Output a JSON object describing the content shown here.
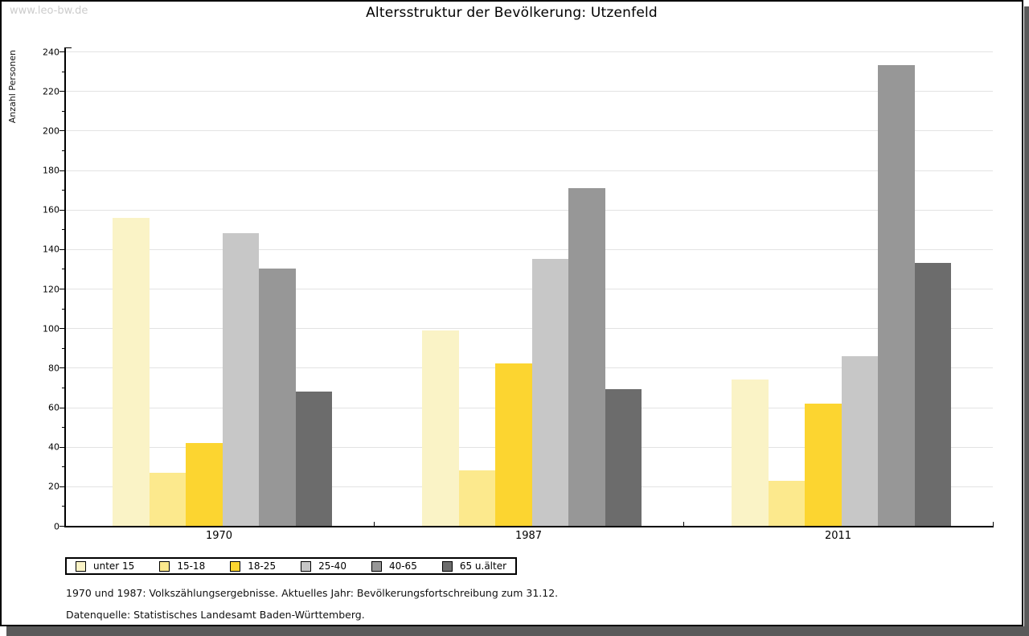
{
  "watermark": "www.leo-bw.de",
  "title": "Altersstruktur der Bevölkerung: Utzenfeld",
  "footnotes": [
    "1970 und 1987: Volkszählungsergebnisse. Aktuelles Jahr: Bevölkerungsfortschreibung zum 31.12.",
    "Datenquelle: Statistisches Landesamt Baden-Württemberg."
  ],
  "colors": {
    "grid": "#e3e3e3",
    "axis": "#000000",
    "watermark": "#cccccc",
    "window_shadow": "#5a5a5a"
  },
  "chart_data": {
    "type": "bar",
    "title": "Altersstruktur der Bevölkerung: Utzenfeld",
    "xlabel": "",
    "ylabel": "Anzahl Personen",
    "ylim": [
      0,
      240
    ],
    "ytick_interval": 20,
    "minor_tick_interval": 10,
    "grid": true,
    "legend_position": "bottom-left",
    "categories": [
      "1970",
      "1987",
      "2011"
    ],
    "series": [
      {
        "name": "unter 15",
        "color": "#faf3c6",
        "values": [
          156,
          99,
          74
        ]
      },
      {
        "name": "15-18",
        "color": "#fce98d",
        "values": [
          27,
          28,
          23
        ]
      },
      {
        "name": "18-25",
        "color": "#fcd530",
        "values": [
          42,
          82,
          62
        ]
      },
      {
        "name": "25-40",
        "color": "#c7c7c7",
        "values": [
          148,
          135,
          86
        ]
      },
      {
        "name": "40-65",
        "color": "#979797",
        "values": [
          130,
          171,
          233
        ]
      },
      {
        "name": "65 u.älter",
        "color": "#6c6c6c",
        "values": [
          68,
          69,
          133
        ]
      }
    ]
  }
}
